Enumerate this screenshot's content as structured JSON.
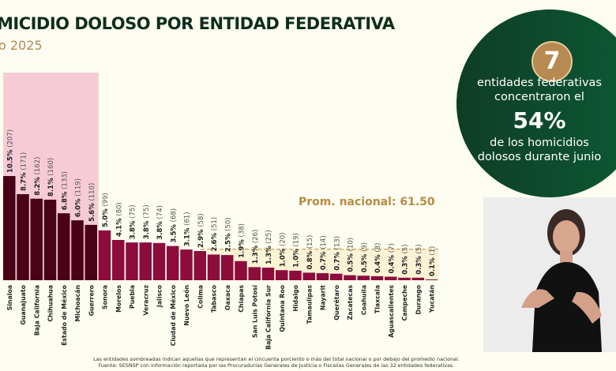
{
  "header": {
    "title": "MICIDIO DOLOSO POR ENTIDAD FEDERATIVA",
    "subtitle": "o 2025"
  },
  "chart_data": {
    "type": "bar",
    "categories": [
      "Sinaloa",
      "Guanajuato",
      "Baja California",
      "Chihuahua",
      "Estado de México",
      "Michoacán",
      "Guerrero",
      "Sonora",
      "Morelos",
      "Puebla",
      "Veracruz",
      "Jalisco",
      "Ciudad de México",
      "Nuevo León",
      "Colima",
      "Tabasco",
      "Oaxaca",
      "Chiapas",
      "San Luis Potosí",
      "Baja California Sur",
      "Quintana Roo",
      "Hidalgo",
      "Tamaulipas",
      "Nayarit",
      "Querétaro",
      "Zacatecas",
      "Coahuila",
      "Tlaxcala",
      "Aguascalientes",
      "Campeche",
      "Durango",
      "Yucatán"
    ],
    "values": [
      207,
      171,
      162,
      160,
      133,
      119,
      110,
      99,
      80,
      75,
      75,
      74,
      68,
      61,
      58,
      51,
      50,
      38,
      26,
      25,
      20,
      19,
      15,
      14,
      13,
      10,
      9,
      8,
      7,
      5,
      5,
      1
    ],
    "labels_pct": [
      "10.5%",
      "8.7%",
      "8.2%",
      "8.1%",
      "6.8%",
      "6.0%",
      "5.6%",
      "5.0%",
      "4.1%",
      "3.8%",
      "3.8%",
      "3.8%",
      "3.5%",
      "3.1%",
      "2.9%",
      "2.6%",
      "2.5%",
      "1.9%",
      "1.3%",
      "1.3%",
      "1.0%",
      "1.0%",
      "0.8%",
      "0.7%",
      "0.7%",
      "0.5%",
      "0.5%",
      "0.4%",
      "0.4%",
      "0.3%",
      "0.3%",
      "0.1%"
    ],
    "reference_line": {
      "label": "Prom. nacional: 61.50",
      "value": 61.5
    },
    "highlight_count": 7,
    "colors": {
      "highlight_bar": "#4a0216",
      "bar": "#8c0c3c",
      "highlight_bg": "#f7cbd5",
      "below_avg_bg": "#fbf3d6",
      "avg_line": "#c9a35a"
    },
    "ylim": [
      0,
      215
    ]
  },
  "callout": {
    "number": "7",
    "line1": "entidades federativas",
    "line2": "concentraron el",
    "percent": "54%",
    "line3": "de los homicidios",
    "line4": "dolosos durante junio"
  },
  "footer": {
    "note": "Las entidades sombreadas indican aquellas que representan el cincuenta porciento o más del total nacional o por debajo del promedio nacional.",
    "source": "Fuente: SESNSP con información reportada por las Procuradurías Generales de Justicia o Fiscalías Generales de las 32 entidades federativas."
  }
}
